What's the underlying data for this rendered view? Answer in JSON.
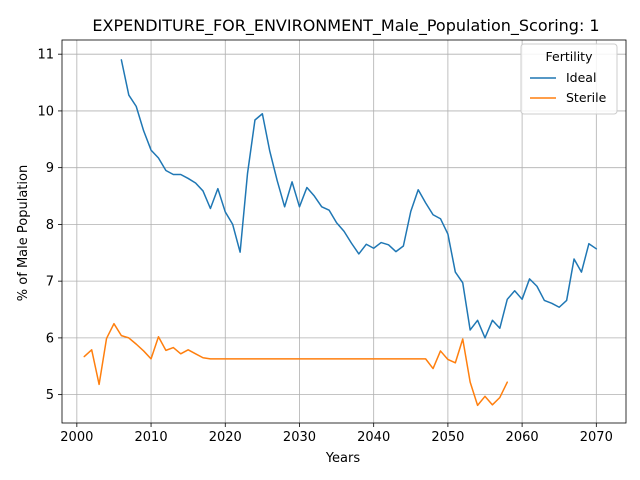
{
  "chart_data": {
    "type": "line",
    "title": "EXPENDITURE_FOR_ENVIRONMENT_Male_Population_Scoring: 1",
    "xlabel": "Years",
    "ylabel": "% of Male Population",
    "xlim": [
      1998,
      2074
    ],
    "ylim": [
      4.5,
      11.25
    ],
    "xticks": [
      2000,
      2010,
      2020,
      2030,
      2040,
      2050,
      2060,
      2070
    ],
    "yticks": [
      5,
      6,
      7,
      8,
      9,
      10,
      11
    ],
    "grid": true,
    "legend": {
      "title": "Fertility",
      "position": "top-right"
    },
    "series": [
      {
        "name": "Ideal",
        "color": "#1f77b4",
        "x": [
          2006,
          2007,
          2008,
          2009,
          2010,
          2011,
          2012,
          2013,
          2014,
          2015,
          2016,
          2017,
          2018,
          2019,
          2020,
          2021,
          2022,
          2023,
          2024,
          2025,
          2026,
          2027,
          2028,
          2029,
          2030,
          2031,
          2032,
          2033,
          2034,
          2035,
          2036,
          2037,
          2038,
          2039,
          2040,
          2041,
          2042,
          2043,
          2044,
          2045,
          2046,
          2047,
          2048,
          2049,
          2050,
          2051,
          2052,
          2053,
          2054,
          2055,
          2056,
          2057,
          2058,
          2059,
          2060,
          2061,
          2062,
          2063,
          2064,
          2065,
          2066,
          2067,
          2068,
          2069,
          2070
        ],
        "y": [
          10.9,
          10.28,
          10.08,
          9.65,
          9.31,
          9.17,
          8.95,
          8.88,
          8.88,
          8.81,
          8.73,
          8.59,
          8.28,
          8.63,
          8.22,
          8.0,
          7.51,
          8.9,
          9.84,
          9.95,
          9.29,
          8.77,
          8.31,
          8.75,
          8.31,
          8.65,
          8.5,
          8.31,
          8.25,
          8.03,
          7.88,
          7.67,
          7.48,
          7.65,
          7.58,
          7.68,
          7.64,
          7.52,
          7.62,
          8.23,
          8.61,
          8.38,
          8.17,
          8.1,
          7.83,
          7.16,
          6.97,
          6.14,
          6.31,
          6.0,
          6.31,
          6.17,
          6.68,
          6.83,
          6.68,
          7.04,
          6.91,
          6.66,
          6.61,
          6.54,
          6.66,
          7.39,
          7.16,
          7.66,
          7.57
        ]
      },
      {
        "name": "Sterile",
        "color": "#ff7f0e",
        "x": [
          2001,
          2002,
          2003,
          2004,
          2005,
          2006,
          2007,
          2008,
          2009,
          2010,
          2011,
          2012,
          2013,
          2014,
          2015,
          2016,
          2017,
          2018,
          2019,
          2020,
          2021,
          2022,
          2023,
          2024,
          2025,
          2026,
          2027,
          2028,
          2029,
          2030,
          2031,
          2032,
          2033,
          2034,
          2035,
          2036,
          2037,
          2038,
          2039,
          2040,
          2041,
          2042,
          2043,
          2044,
          2045,
          2046,
          2047,
          2048,
          2049,
          2050,
          2051,
          2052,
          2053,
          2054,
          2055,
          2056,
          2057,
          2058
        ],
        "y": [
          5.67,
          5.79,
          5.18,
          5.99,
          6.25,
          6.04,
          6.0,
          5.89,
          5.77,
          5.63,
          6.02,
          5.78,
          5.83,
          5.72,
          5.79,
          5.72,
          5.65,
          5.63,
          5.63,
          5.63,
          5.63,
          5.63,
          5.63,
          5.63,
          5.63,
          5.63,
          5.63,
          5.63,
          5.63,
          5.63,
          5.63,
          5.63,
          5.63,
          5.63,
          5.63,
          5.63,
          5.63,
          5.63,
          5.63,
          5.63,
          5.63,
          5.63,
          5.63,
          5.63,
          5.63,
          5.63,
          5.63,
          5.46,
          5.77,
          5.62,
          5.56,
          5.98,
          5.22,
          4.81,
          4.97,
          4.82,
          4.95,
          5.22
        ]
      }
    ]
  }
}
